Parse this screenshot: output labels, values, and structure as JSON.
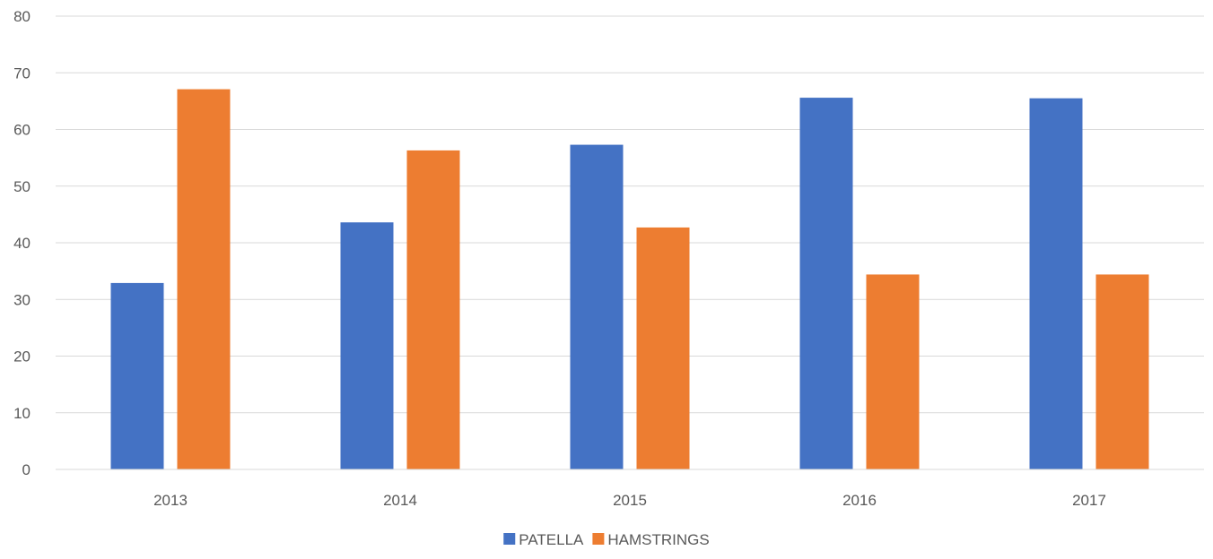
{
  "chart_data": {
    "type": "bar",
    "title": "",
    "xlabel": "",
    "ylabel": "",
    "categories": [
      "2013",
      "2014",
      "2015",
      "2016",
      "2017"
    ],
    "series": [
      {
        "name": "PATELLA",
        "color": "#4472C4",
        "values": [
          32.9,
          43.6,
          57.3,
          65.6,
          65.5
        ]
      },
      {
        "name": "HAMSTRINGS",
        "color": "#ED7D31",
        "values": [
          67.1,
          56.3,
          42.7,
          34.4,
          34.4
        ]
      }
    ],
    "ylim": [
      0,
      80
    ],
    "yticks": [
      "0",
      "10",
      "20",
      "30",
      "40",
      "50",
      "60",
      "70",
      "80"
    ],
    "grid": true,
    "legend_position": "bottom"
  }
}
